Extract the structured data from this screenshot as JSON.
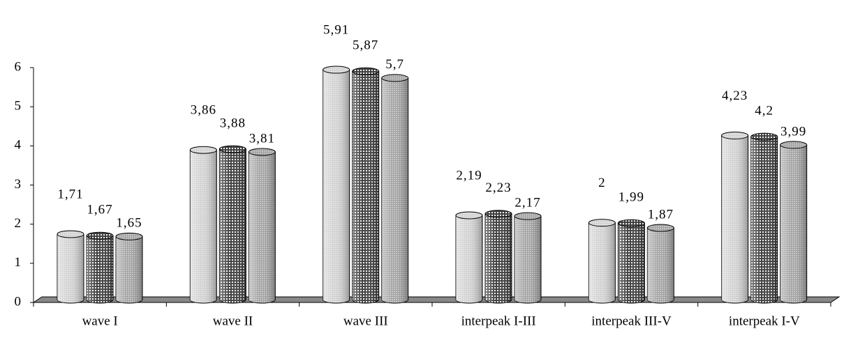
{
  "chart_data": {
    "type": "bar",
    "categories": [
      "wave I",
      "wave II",
      "wave III",
      "interpeak I-III",
      "interpeak III-V",
      "interpeak I-V"
    ],
    "series": [
      {
        "color": "#d0d0d0",
        "values": [
          1.71,
          3.86,
          5.91,
          2.19,
          2,
          4.23
        ],
        "value_labels": [
          "1,71",
          "3,86",
          "5,91",
          "2,19",
          "2",
          "4,23"
        ]
      },
      {
        "color": "#404040",
        "values": [
          1.67,
          3.88,
          5.87,
          2.23,
          1.99,
          4.2
        ],
        "value_labels": [
          "1,67",
          "3,88",
          "5,87",
          "2,23",
          "1,99",
          "4,2"
        ]
      },
      {
        "color": "#a0a0a0",
        "values": [
          1.65,
          3.81,
          5.7,
          2.17,
          1.87,
          3.99
        ],
        "value_labels": [
          "1,65",
          "3,81",
          "5,7",
          "2,17",
          "1,87",
          "3,99"
        ]
      }
    ],
    "ylim": [
      0,
      6
    ],
    "yticks": [
      0,
      1,
      2,
      3,
      4,
      5,
      6
    ]
  }
}
